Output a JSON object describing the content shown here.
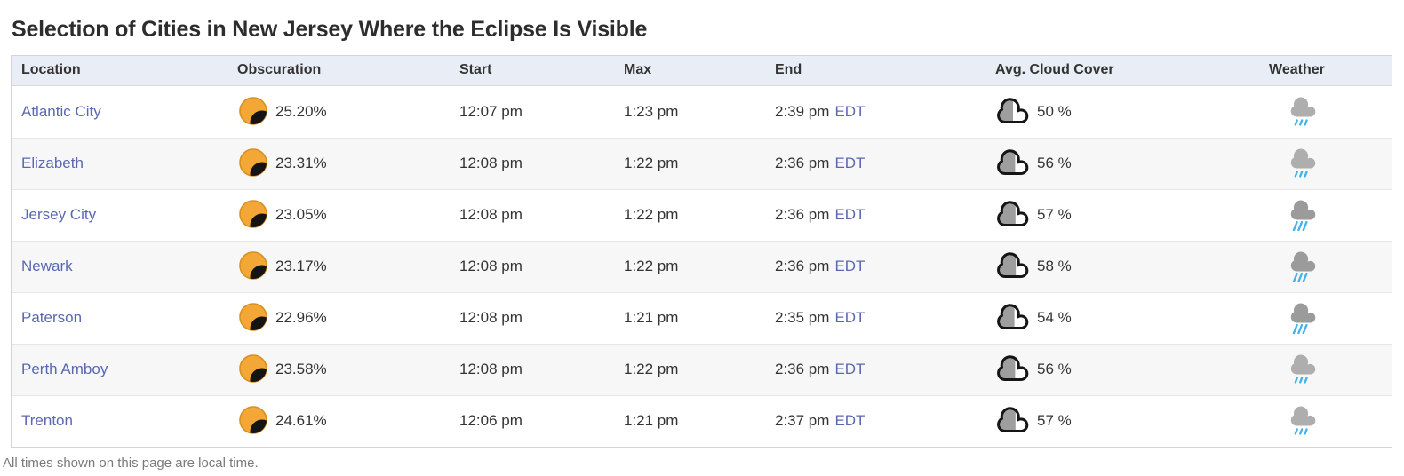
{
  "page": {
    "title": "Selection of Cities in New Jersey Where the Eclipse Is Visible",
    "footnote": "All times shown on this page are local time."
  },
  "colors": {
    "link": "#5a68b2",
    "header_bg": "#e9eef6",
    "row_alt_bg": "#f7f7f7",
    "sun": "#f2a736",
    "sun_border": "#d8901f",
    "moon": "#141414",
    "cloud_cover_fill": "#9e9e9e",
    "rain_blue": "#45b2e8"
  },
  "icons": {
    "obscuration": "partial-eclipse-icon",
    "cloud_cover": "cloud-fill-icon",
    "weather_variants": [
      "light-rain",
      "rain"
    ]
  },
  "table": {
    "columns": [
      "Location",
      "Obscuration",
      "Start",
      "Max",
      "End",
      "Avg. Cloud Cover",
      "Weather"
    ],
    "rows": [
      {
        "location": "Atlantic City",
        "obscuration": "25.20%",
        "start": "12:07 pm",
        "max": "1:23 pm",
        "end": "2:39 pm",
        "tz": "EDT",
        "cloud_cover": "50 %",
        "cloud_cover_pct": 50,
        "weather": "light-rain"
      },
      {
        "location": "Elizabeth",
        "obscuration": "23.31%",
        "start": "12:08 pm",
        "max": "1:22 pm",
        "end": "2:36 pm",
        "tz": "EDT",
        "cloud_cover": "56 %",
        "cloud_cover_pct": 56,
        "weather": "light-rain"
      },
      {
        "location": "Jersey City",
        "obscuration": "23.05%",
        "start": "12:08 pm",
        "max": "1:22 pm",
        "end": "2:36 pm",
        "tz": "EDT",
        "cloud_cover": "57 %",
        "cloud_cover_pct": 57,
        "weather": "rain"
      },
      {
        "location": "Newark",
        "obscuration": "23.17%",
        "start": "12:08 pm",
        "max": "1:22 pm",
        "end": "2:36 pm",
        "tz": "EDT",
        "cloud_cover": "58 %",
        "cloud_cover_pct": 58,
        "weather": "rain"
      },
      {
        "location": "Paterson",
        "obscuration": "22.96%",
        "start": "12:08 pm",
        "max": "1:21 pm",
        "end": "2:35 pm",
        "tz": "EDT",
        "cloud_cover": "54 %",
        "cloud_cover_pct": 54,
        "weather": "rain"
      },
      {
        "location": "Perth Amboy",
        "obscuration": "23.58%",
        "start": "12:08 pm",
        "max": "1:22 pm",
        "end": "2:36 pm",
        "tz": "EDT",
        "cloud_cover": "56 %",
        "cloud_cover_pct": 56,
        "weather": "light-rain"
      },
      {
        "location": "Trenton",
        "obscuration": "24.61%",
        "start": "12:06 pm",
        "max": "1:21 pm",
        "end": "2:37 pm",
        "tz": "EDT",
        "cloud_cover": "57 %",
        "cloud_cover_pct": 57,
        "weather": "light-rain"
      }
    ]
  }
}
